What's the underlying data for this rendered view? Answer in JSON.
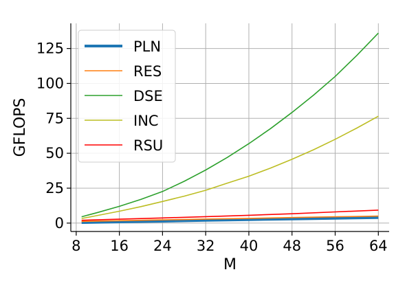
{
  "chart_data": {
    "type": "line",
    "xlabel": "M",
    "ylabel": "GFLOPS",
    "xlim": [
      7,
      66
    ],
    "ylim": [
      -6,
      143
    ],
    "xticks": [
      8,
      16,
      24,
      32,
      40,
      48,
      56,
      64
    ],
    "yticks": [
      0,
      25,
      50,
      75,
      100,
      125
    ],
    "grid": true,
    "legend_position": "upper-left",
    "series": [
      {
        "name": "PLN",
        "color": "#1f77b4",
        "width": 4,
        "x": [
          9,
          16,
          24,
          32,
          40,
          48,
          56,
          64
        ],
        "y": [
          0.4,
          0.9,
          1.4,
          2.0,
          2.5,
          3.0,
          3.5,
          4.0
        ]
      },
      {
        "name": "RES",
        "color": "#ff7f0e",
        "width": 1.6,
        "x": [
          9,
          16,
          24,
          32,
          40,
          48,
          56,
          64
        ],
        "y": [
          1.2,
          1.7,
          2.3,
          2.9,
          3.4,
          4.0,
          4.5,
          5.0
        ]
      },
      {
        "name": "DSE",
        "color": "#2ca02c",
        "width": 1.6,
        "x": [
          9,
          12,
          16,
          20,
          24,
          28,
          32,
          36,
          40,
          44,
          48,
          52,
          56,
          60,
          64
        ],
        "y": [
          4.5,
          7.6,
          12.0,
          17.0,
          22.6,
          29.9,
          38.0,
          47.0,
          56.9,
          67.6,
          79.2,
          91.6,
          105.0,
          120.0,
          136.0
        ]
      },
      {
        "name": "INC",
        "color": "#bcbd22",
        "width": 1.6,
        "x": [
          9,
          12,
          16,
          20,
          24,
          28,
          32,
          36,
          40,
          44,
          48,
          52,
          56,
          60,
          64
        ],
        "y": [
          3.3,
          5.5,
          8.5,
          11.8,
          15.5,
          19.3,
          23.5,
          28.6,
          33.6,
          39.4,
          45.7,
          52.5,
          60.0,
          68.0,
          76.5
        ]
      },
      {
        "name": "RSU",
        "color": "#ff0000",
        "width": 1.6,
        "x": [
          9,
          16,
          24,
          32,
          40,
          48,
          56,
          64
        ],
        "y": [
          2.0,
          2.8,
          3.7,
          4.6,
          5.6,
          6.7,
          8.0,
          9.3
        ]
      }
    ]
  }
}
